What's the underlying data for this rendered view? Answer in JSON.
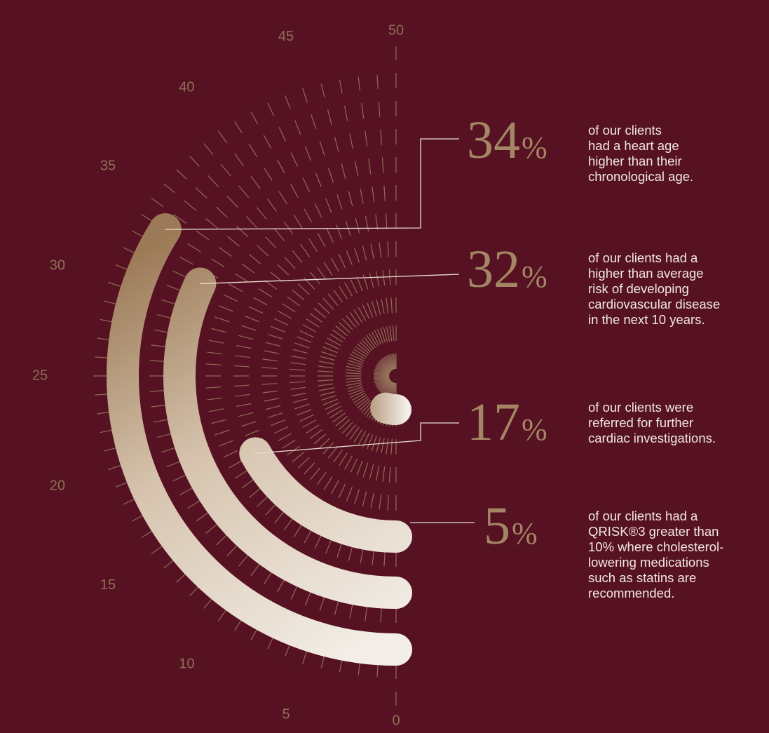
{
  "colors": {
    "background": "#561222",
    "accent": "#a48664",
    "tick_label": "#8f6f55",
    "dash": "#9a7a60",
    "text": "#f1e8df",
    "bar_light": "#f3eee7",
    "bar_dark": "#9c7a57"
  },
  "chart_data": {
    "type": "radial-bar",
    "axis_ticks": [
      "0",
      "5",
      "10",
      "15",
      "20",
      "25",
      "30",
      "35",
      "40",
      "45",
      "50"
    ],
    "axis_range": [
      0,
      50
    ],
    "series": [
      {
        "value": 34,
        "label": "34",
        "unit": "%",
        "description": "of our clients\nhad a heart age\nhigher than their\nchronological age."
      },
      {
        "value": 32,
        "label": "32",
        "unit": "%",
        "description": "of our clients had a\nhigher than average\nrisk of developing\ncardiovascular disease\nin the next 10 years."
      },
      {
        "value": 17,
        "label": "17",
        "unit": "%",
        "description": "of our clients were\nreferred for further\ncardiac investigations."
      },
      {
        "value": 5,
        "label": "5",
        "unit": "%",
        "description": "of our clients had a\nQRISK®3 greater than\n10% where cholesterol-\nlowering medications\nsuch as statins are\nrecommended."
      }
    ]
  }
}
